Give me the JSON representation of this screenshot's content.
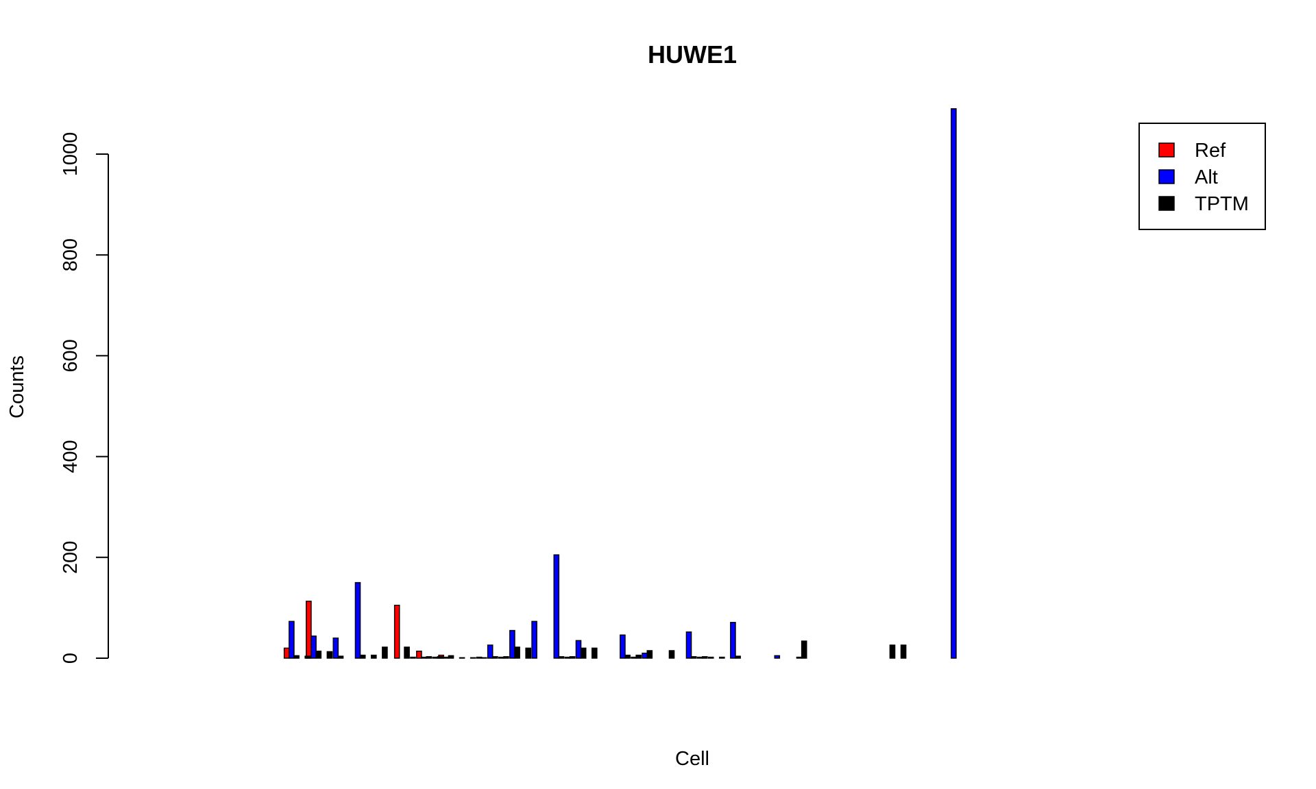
{
  "chart_data": {
    "type": "bar",
    "title": "HUWE1",
    "xlabel": "Cell",
    "ylabel": "Counts",
    "ylim": [
      0,
      1100
    ],
    "yticks": [
      0,
      200,
      400,
      600,
      800,
      1000
    ],
    "grid": false,
    "legend_position": "top-right",
    "colors": {
      "Ref": "#ff0000",
      "Alt": "#0000ff",
      "TPTM": "#000000"
    },
    "series": [
      {
        "name": "Ref",
        "color": "#ff0000",
        "values": [
          0,
          0,
          0,
          0,
          0,
          0,
          20,
          0,
          113,
          0,
          0,
          0,
          0,
          0,
          0,
          0,
          105,
          0,
          14,
          0,
          6,
          0,
          0,
          0,
          0,
          0,
          0,
          0,
          0,
          0,
          0,
          0,
          0,
          0,
          0,
          0,
          0,
          0,
          0,
          0,
          0,
          0,
          0,
          0,
          0,
          0,
          0,
          0,
          0,
          0,
          0,
          0,
          0,
          0,
          0,
          0,
          0,
          0,
          0,
          0,
          0,
          0,
          0,
          0,
          0,
          0,
          0,
          0,
          0,
          0,
          0,
          0
        ]
      },
      {
        "name": "Alt",
        "color": "#0000ff",
        "values": [
          0,
          0,
          0,
          0,
          0,
          0,
          73,
          0,
          44,
          0,
          40,
          0,
          150,
          0,
          0,
          0,
          0,
          2,
          2,
          2,
          2,
          0,
          0,
          2,
          26,
          2,
          55,
          0,
          73,
          0,
          205,
          2,
          35,
          0,
          0,
          0,
          46,
          2,
          10,
          0,
          0,
          0,
          52,
          2,
          2,
          2,
          71,
          0,
          0,
          0,
          5,
          0,
          2,
          0,
          0,
          0,
          0,
          0,
          0,
          0,
          0,
          0,
          0,
          0,
          0,
          0,
          1090,
          0,
          0,
          0,
          0,
          0
        ]
      },
      {
        "name": "TPTM",
        "color": "#000000",
        "values": [
          0,
          0,
          0,
          0,
          0,
          0,
          5,
          4,
          14,
          13,
          4,
          0,
          6,
          6,
          22,
          0,
          22,
          0,
          3,
          3,
          5,
          1,
          1,
          1,
          3,
          3,
          22,
          20,
          0,
          0,
          3,
          3,
          20,
          20,
          0,
          0,
          6,
          6,
          15,
          0,
          15,
          0,
          3,
          3,
          0,
          0,
          4,
          0,
          0,
          0,
          0,
          0,
          34,
          0,
          0,
          0,
          0,
          0,
          0,
          0,
          26,
          26,
          0,
          0,
          0,
          0,
          0,
          0,
          0,
          0,
          0,
          0
        ]
      }
    ]
  }
}
